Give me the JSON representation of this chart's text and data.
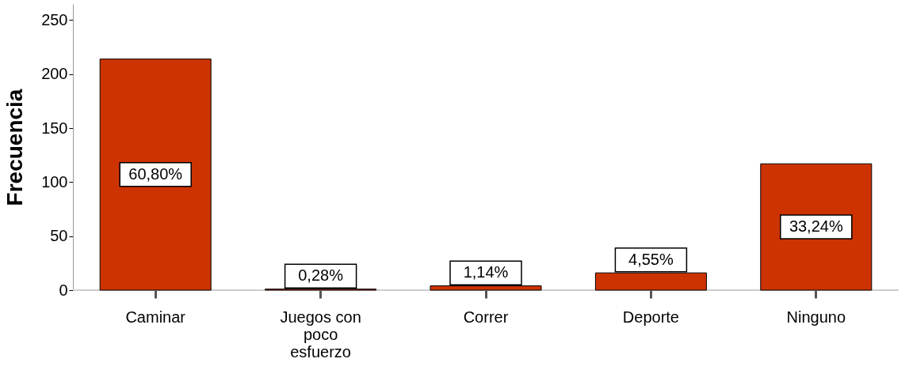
{
  "chart_data": {
    "type": "bar",
    "ylabel": "Frecuencia",
    "categories": [
      "Caminar",
      "Juegos con poco esfuerzo",
      "Correr",
      "Deporte",
      "Ninguno"
    ],
    "values": [
      214,
      1,
      4,
      16,
      117
    ],
    "annotations": [
      "60,80%",
      "0,28%",
      "1,14%",
      "4,55%",
      "33,24%"
    ],
    "color": "#cc3300",
    "ylim": [
      0,
      265
    ],
    "yticks": [
      0,
      50,
      100,
      150,
      200,
      250
    ],
    "grid": false
  }
}
